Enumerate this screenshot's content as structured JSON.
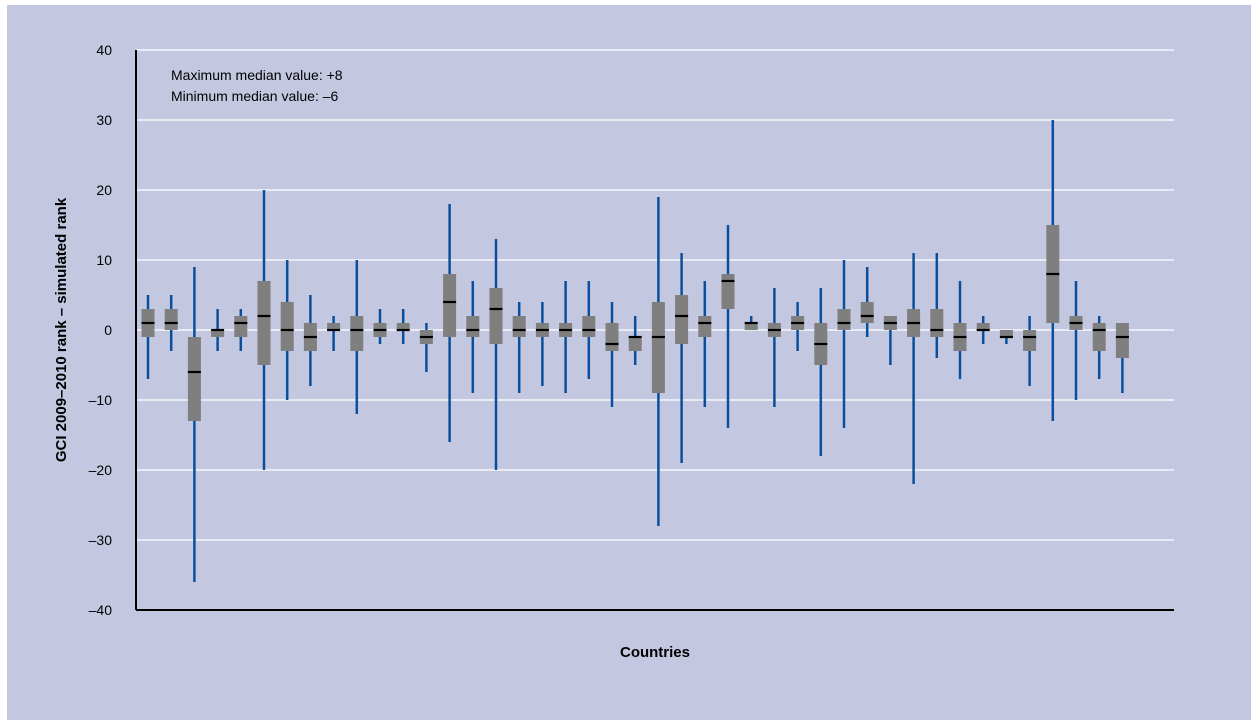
{
  "chart_data": {
    "type": "boxplot",
    "title": "",
    "xlabel": "Countries",
    "ylabel": "GCI 2009–2010 rank – simulated rank",
    "ylim": [
      -40,
      40
    ],
    "yticks": [
      40,
      30,
      20,
      10,
      0,
      -10,
      -20,
      -30,
      -40
    ],
    "ytick_labels": [
      "40",
      "30",
      "20",
      "10",
      "0",
      "–10",
      "–20",
      "–30",
      "–40"
    ],
    "grid": true,
    "annotations": [
      "Maximum median value: +8",
      "Minimum median value: –6"
    ],
    "colors": {
      "whisker": "#0a4f9e",
      "box": "#7f7f7f",
      "median": "#000000",
      "background": "#c3c8e0",
      "grid": "#ffffff"
    },
    "boxes": [
      {
        "min": -7,
        "q1": -1,
        "median": 1,
        "q3": 3,
        "max": 5
      },
      {
        "min": -3,
        "q1": 0,
        "median": 1,
        "q3": 3,
        "max": 5
      },
      {
        "min": -36,
        "q1": -13,
        "median": -6,
        "q3": -1,
        "max": 9
      },
      {
        "min": -3,
        "q1": -1,
        "median": 0,
        "q3": 0,
        "max": 3
      },
      {
        "min": -3,
        "q1": -1,
        "median": 1,
        "q3": 2,
        "max": 3
      },
      {
        "min": -20,
        "q1": -5,
        "median": 2,
        "q3": 7,
        "max": 20
      },
      {
        "min": -10,
        "q1": -3,
        "median": 0,
        "q3": 4,
        "max": 10
      },
      {
        "min": -8,
        "q1": -3,
        "median": -1,
        "q3": 1,
        "max": 5
      },
      {
        "min": -3,
        "q1": 0,
        "median": 0,
        "q3": 1,
        "max": 2
      },
      {
        "min": -12,
        "q1": -3,
        "median": 0,
        "q3": 2,
        "max": 10
      },
      {
        "min": -2,
        "q1": -1,
        "median": 0,
        "q3": 1,
        "max": 3
      },
      {
        "min": -2,
        "q1": 0,
        "median": 0,
        "q3": 1,
        "max": 3
      },
      {
        "min": -6,
        "q1": -2,
        "median": -1,
        "q3": 0,
        "max": 1
      },
      {
        "min": -16,
        "q1": -1,
        "median": 4,
        "q3": 8,
        "max": 18
      },
      {
        "min": -9,
        "q1": -1,
        "median": 0,
        "q3": 2,
        "max": 7
      },
      {
        "min": -20,
        "q1": -2,
        "median": 3,
        "q3": 6,
        "max": 13
      },
      {
        "min": -9,
        "q1": -1,
        "median": 0,
        "q3": 2,
        "max": 4
      },
      {
        "min": -8,
        "q1": -1,
        "median": 0,
        "q3": 1,
        "max": 4
      },
      {
        "min": -9,
        "q1": -1,
        "median": 0,
        "q3": 1,
        "max": 7
      },
      {
        "min": -7,
        "q1": -1,
        "median": 0,
        "q3": 2,
        "max": 7
      },
      {
        "min": -11,
        "q1": -3,
        "median": -2,
        "q3": 1,
        "max": 4
      },
      {
        "min": -5,
        "q1": -3,
        "median": -1,
        "q3": -1,
        "max": 2
      },
      {
        "min": -28,
        "q1": -9,
        "median": -1,
        "q3": 4,
        "max": 19
      },
      {
        "min": -19,
        "q1": -2,
        "median": 2,
        "q3": 5,
        "max": 11
      },
      {
        "min": -11,
        "q1": -1,
        "median": 1,
        "q3": 2,
        "max": 7
      },
      {
        "min": -14,
        "q1": 3,
        "median": 7,
        "q3": 8,
        "max": 15
      },
      {
        "min": 0,
        "q1": 0,
        "median": 1,
        "q3": 1,
        "max": 2
      },
      {
        "min": -11,
        "q1": -1,
        "median": 0,
        "q3": 1,
        "max": 6
      },
      {
        "min": -3,
        "q1": 0,
        "median": 1,
        "q3": 2,
        "max": 4
      },
      {
        "min": -18,
        "q1": -5,
        "median": -2,
        "q3": 1,
        "max": 6
      },
      {
        "min": -14,
        "q1": 0,
        "median": 1,
        "q3": 3,
        "max": 10
      },
      {
        "min": -1,
        "q1": 1,
        "median": 2,
        "q3": 4,
        "max": 9
      },
      {
        "min": -5,
        "q1": 0,
        "median": 1,
        "q3": 2,
        "max": 2
      },
      {
        "min": -22,
        "q1": -1,
        "median": 1,
        "q3": 3,
        "max": 11
      },
      {
        "min": -4,
        "q1": -1,
        "median": 0,
        "q3": 3,
        "max": 11
      },
      {
        "min": -7,
        "q1": -3,
        "median": -1,
        "q3": 1,
        "max": 7
      },
      {
        "min": -2,
        "q1": 0,
        "median": 0,
        "q3": 1,
        "max": 2
      },
      {
        "min": -2,
        "q1": -1,
        "median": -1,
        "q3": 0,
        "max": 0
      },
      {
        "min": -8,
        "q1": -3,
        "median": -1,
        "q3": 0,
        "max": 2
      },
      {
        "min": -13,
        "q1": 1,
        "median": 8,
        "q3": 15,
        "max": 30
      },
      {
        "min": -10,
        "q1": 0,
        "median": 1,
        "q3": 2,
        "max": 7
      },
      {
        "min": -7,
        "q1": -3,
        "median": 0,
        "q3": 1,
        "max": 2
      },
      {
        "min": -9,
        "q1": -4,
        "median": -1,
        "q3": 1,
        "max": 1
      }
    ]
  }
}
